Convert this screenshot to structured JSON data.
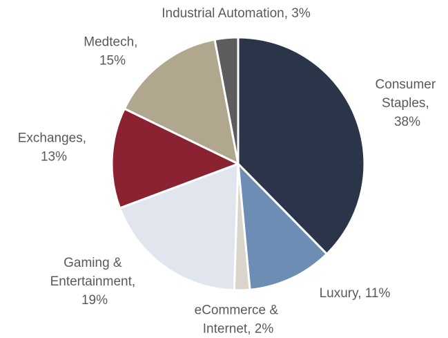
{
  "chart_data": {
    "type": "pie",
    "labels": [
      "Consumer Staples, 38%",
      "Luxury, 11%",
      "eCommerce & Internet, 2%",
      "Gaming & Entertainment, 19%",
      "Exchanges, 13%",
      "Medtech, 15%",
      "Industrial Automation, 3%"
    ],
    "values": [
      38,
      11,
      2,
      19,
      13,
      15,
      3
    ],
    "colors": [
      "#2b3549",
      "#6d8db5",
      "#d9d5cb",
      "#e1e6ee",
      "#8b2232",
      "#b1a78f",
      "#5d5c5e"
    ]
  }
}
